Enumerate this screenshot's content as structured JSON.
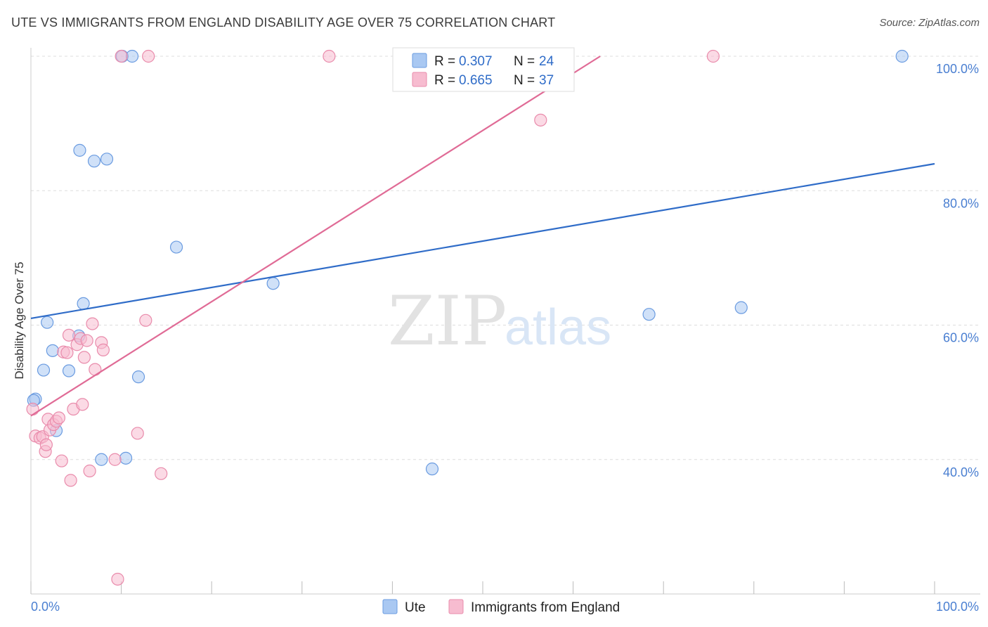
{
  "title": "UTE VS IMMIGRANTS FROM ENGLAND DISABILITY AGE OVER 75 CORRELATION CHART",
  "source": "Source: ZipAtlas.com",
  "watermark": {
    "zip": "ZIP",
    "atlas": "atlas"
  },
  "colors": {
    "ute_fill": "#a9c8f2",
    "ute_stroke": "#6a9be0",
    "ute_line": "#2f6cc8",
    "eng_fill": "#f7bcd0",
    "eng_stroke": "#e98bab",
    "eng_line": "#e06b96",
    "grid": "#dddddd",
    "tick_text": "#4a7fd1"
  },
  "legend": {
    "rows": [
      {
        "r_label": "R = ",
        "r_value": "0.307",
        "n_label": "N = ",
        "n_value": "24"
      },
      {
        "r_label": "R = ",
        "r_value": "0.665",
        "n_label": "N = ",
        "n_value": "37"
      }
    ]
  },
  "bottom_legend": [
    "Ute",
    "Immigrants from England"
  ],
  "chart_data": {
    "type": "scatter",
    "ylabel": "Disability Age Over 75",
    "xlim": [
      0,
      100
    ],
    "ylim": [
      20,
      100
    ],
    "x_tick_labels": [
      {
        "value": 0,
        "label": "0.0%"
      },
      {
        "value": 100,
        "label": "100.0%"
      }
    ],
    "y_tick_labels": [
      {
        "value": 40,
        "label": "40.0%"
      },
      {
        "value": 60,
        "label": "60.0%"
      },
      {
        "value": 80,
        "label": "80.0%"
      },
      {
        "value": 100,
        "label": "100.0%"
      }
    ],
    "grid": true,
    "legend_position": "top-center",
    "series": [
      {
        "name": "Ute",
        "r": 0.307,
        "n": 24,
        "trend": {
          "x": [
            0,
            100
          ],
          "y": [
            61.0,
            84.0
          ]
        },
        "points": [
          [
            0.5,
            49.0
          ],
          [
            1.4,
            53.3
          ],
          [
            1.8,
            60.4
          ],
          [
            2.4,
            56.2
          ],
          [
            2.8,
            44.3
          ],
          [
            4.2,
            53.2
          ],
          [
            5.3,
            58.4
          ],
          [
            5.4,
            86.0
          ],
          [
            5.8,
            63.2
          ],
          [
            7.0,
            84.4
          ],
          [
            7.8,
            40.0
          ],
          [
            8.4,
            84.7
          ],
          [
            10.1,
            100.0
          ],
          [
            10.5,
            40.2
          ],
          [
            11.2,
            100.0
          ],
          [
            11.9,
            52.3
          ],
          [
            16.1,
            71.6
          ],
          [
            26.8,
            66.2
          ],
          [
            44.4,
            38.6
          ],
          [
            57.3,
            100.0
          ],
          [
            68.4,
            61.6
          ],
          [
            78.6,
            62.6
          ],
          [
            96.4,
            100.0
          ],
          [
            0.3,
            48.8
          ]
        ]
      },
      {
        "name": "Immigrants from England",
        "r": 0.665,
        "n": 37,
        "trend": {
          "x": [
            0,
            63
          ],
          "y": [
            46.5,
            100.0
          ]
        },
        "points": [
          [
            0.2,
            47.5
          ],
          [
            0.5,
            43.5
          ],
          [
            1.0,
            43.2
          ],
          [
            1.3,
            43.4
          ],
          [
            1.6,
            41.2
          ],
          [
            1.7,
            42.2
          ],
          [
            1.9,
            46.0
          ],
          [
            2.1,
            44.4
          ],
          [
            2.5,
            45.2
          ],
          [
            2.8,
            45.7
          ],
          [
            3.1,
            46.2
          ],
          [
            3.4,
            39.8
          ],
          [
            3.6,
            56.0
          ],
          [
            4.0,
            55.9
          ],
          [
            4.2,
            58.5
          ],
          [
            4.4,
            36.9
          ],
          [
            4.7,
            47.5
          ],
          [
            5.1,
            57.1
          ],
          [
            5.5,
            58.0
          ],
          [
            5.7,
            48.2
          ],
          [
            5.9,
            55.2
          ],
          [
            6.2,
            57.7
          ],
          [
            6.5,
            38.3
          ],
          [
            6.8,
            60.2
          ],
          [
            7.1,
            53.4
          ],
          [
            7.8,
            57.4
          ],
          [
            8.0,
            56.3
          ],
          [
            9.3,
            40.0
          ],
          [
            9.6,
            22.2
          ],
          [
            10.0,
            100.0
          ],
          [
            11.8,
            43.9
          ],
          [
            12.7,
            60.7
          ],
          [
            13.0,
            100.0
          ],
          [
            14.4,
            37.9
          ],
          [
            33.0,
            100.0
          ],
          [
            56.4,
            90.5
          ],
          [
            75.5,
            100.0
          ]
        ]
      }
    ]
  }
}
